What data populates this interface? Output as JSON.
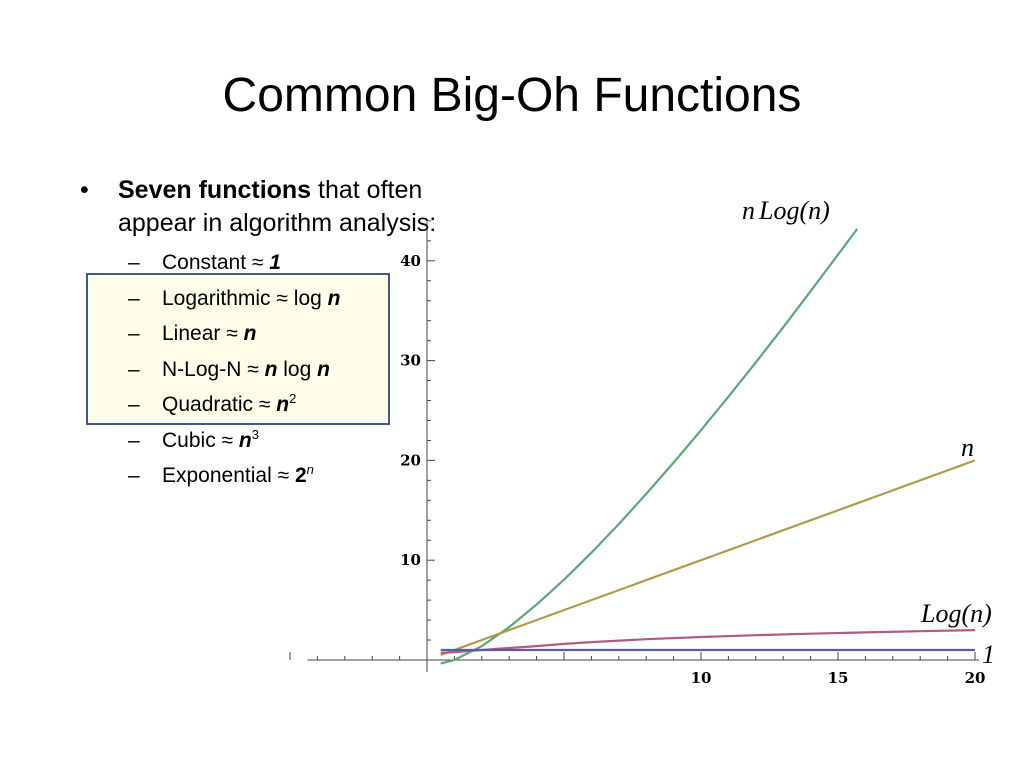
{
  "slide": {
    "title": "Common Big-Oh Functions"
  },
  "bullets": {
    "marker": "•",
    "lead_bold": "Seven functions",
    "lead_rest": " that often appear in algorithm analysis:",
    "approx": "≈",
    "dash": "–",
    "items": [
      {
        "name": "Constant",
        "pre": "",
        "var": "1",
        "post": "",
        "sup": ""
      },
      {
        "name": "Logarithmic",
        "pre": " log ",
        "var": "n",
        "post": "",
        "sup": ""
      },
      {
        "name": "Linear",
        "pre": "",
        "var": "n",
        "post": "",
        "sup": ""
      },
      {
        "name": "N-Log-N",
        "pre": "",
        "var": "n",
        "post": " log ",
        "var2": "n",
        "sup": ""
      },
      {
        "name": "Quadratic",
        "pre": "",
        "var": "n",
        "post": "",
        "sup": "2"
      },
      {
        "name": "Cubic",
        "pre": "",
        "var": "n",
        "post": "",
        "sup": "3"
      },
      {
        "name": "Exponential",
        "pre": "",
        "var": "2",
        "post": "",
        "sup": "n"
      }
    ]
  },
  "chart_data": {
    "type": "line",
    "title": "",
    "xlabel": "",
    "ylabel": "",
    "xlim": [
      -4,
      20
    ],
    "ylim": [
      -2,
      44
    ],
    "x_ticks": [
      10,
      15,
      20
    ],
    "y_ticks": [
      10,
      20,
      30,
      40
    ],
    "grid": false,
    "series": [
      {
        "name": "n Log(n)",
        "color": "#5aa879",
        "x": [
          0.5,
          1,
          2,
          3,
          4,
          5,
          6,
          7,
          8,
          9,
          10,
          11,
          12,
          13,
          14,
          15,
          15.7
        ],
        "y": [
          -0.35,
          0,
          1.39,
          3.3,
          5.55,
          8.05,
          10.75,
          13.62,
          16.64,
          19.78,
          23.03,
          26.38,
          29.82,
          33.34,
          36.95,
          40.62,
          43.2
        ]
      },
      {
        "name": "n",
        "color": "#b09b4d",
        "x": [
          0.5,
          20
        ],
        "y": [
          0.5,
          20
        ]
      },
      {
        "name": "Log(n)",
        "color": "#b05a88",
        "x": [
          0.5,
          1,
          2,
          3,
          4,
          5,
          6,
          8,
          10,
          12,
          14,
          16,
          18,
          20
        ],
        "y": [
          0.7,
          0.78,
          1.0,
          1.2,
          1.39,
          1.61,
          1.79,
          2.08,
          2.3,
          2.48,
          2.64,
          2.77,
          2.89,
          3.0
        ]
      },
      {
        "name": "1",
        "color": "#5c5aa6",
        "x": [
          0.5,
          20
        ],
        "y": [
          1,
          1
        ]
      }
    ],
    "labels": [
      {
        "series": "n Log(n)",
        "parts": [
          "n",
          "Log",
          "(",
          "n",
          ")"
        ]
      },
      {
        "series": "n",
        "parts": [
          "n"
        ]
      },
      {
        "series": "Log(n)",
        "parts": [
          "Log",
          "(",
          "n",
          ")"
        ]
      },
      {
        "series": "1",
        "parts": [
          "1"
        ]
      }
    ]
  }
}
